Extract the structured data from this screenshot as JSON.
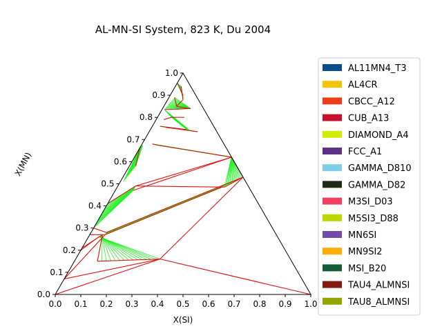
{
  "chart_data": {
    "type": "ternary",
    "title": "AL-MN-SI System, 823 K, Du 2004",
    "xlabel": "X(SI)",
    "ylabel": "X(MN)",
    "xlim": [
      0,
      1
    ],
    "ylim": [
      0,
      1
    ],
    "x_ticks": [
      "0.0",
      "0.1",
      "0.2",
      "0.3",
      "0.4",
      "0.5",
      "0.6",
      "0.7",
      "0.8",
      "0.9",
      "1.0"
    ],
    "y_ticks": [
      "0.0",
      "0.1",
      "0.2",
      "0.3",
      "0.4",
      "0.5",
      "0.6",
      "0.7",
      "0.8",
      "0.9",
      "1.0"
    ],
    "legend_position": "right",
    "legend": [
      {
        "name": "AL11MN4_T3",
        "color": "#0a4f8c"
      },
      {
        "name": "AL4CR",
        "color": "#f5c400"
      },
      {
        "name": "CBCC_A12",
        "color": "#ef3d17"
      },
      {
        "name": "CUB_A13",
        "color": "#c8102e"
      },
      {
        "name": "DIAMOND_A4",
        "color": "#d4ec00"
      },
      {
        "name": "FCC_A1",
        "color": "#5a3183"
      },
      {
        "name": "GAMMA_D810",
        "color": "#7ccfe6"
      },
      {
        "name": "GAMMA_D82",
        "color": "#1f2a14"
      },
      {
        "name": "M3SI_D03",
        "color": "#f2405e"
      },
      {
        "name": "M5SI3_D88",
        "color": "#bcd800"
      },
      {
        "name": "MN6SI",
        "color": "#7549a8"
      },
      {
        "name": "MN9SI2",
        "color": "#ffad00"
      },
      {
        "name": "MSI_B20",
        "color": "#145c38"
      },
      {
        "name": "TAU4_ALMNSI",
        "color": "#821a10"
      },
      {
        "name": "TAU8_ALMNSI",
        "color": "#93a600"
      }
    ],
    "tie_line_regions": [
      {
        "a": [
          [
            0.0,
            0.955
          ],
          [
            0.023,
            0.94
          ]
        ],
        "b": [
          [
            0.05,
            0.9
          ],
          [
            0.06,
            0.88
          ]
        ]
      },
      {
        "a": [
          [
            0.022,
            0.89
          ],
          [
            0.01,
            0.84
          ]
        ],
        "b": [
          [
            0.11,
            0.84
          ],
          [
            0.105,
            0.84
          ]
        ]
      },
      {
        "a": [
          [
            0.01,
            0.835
          ],
          [
            0.055,
            0.8
          ]
        ],
        "b": [
          [
            0.15,
            0.745
          ],
          [
            0.142,
            0.745
          ]
        ]
      },
      {
        "a": [
          [
            0.03,
            0.76
          ],
          [
            0.055,
            0.755
          ]
        ],
        "b": [
          [
            0.19,
            0.735
          ],
          [
            0.14,
            0.745
          ]
        ]
      },
      {
        "a": [
          [
            0.005,
            0.675
          ],
          [
            0.0,
            0.66
          ]
        ],
        "b": [
          [
            0.025,
            0.58
          ],
          [
            0.012,
            0.51
          ]
        ]
      },
      {
        "a": [
          [
            0.04,
            0.68
          ],
          [
            0.06,
            0.675
          ]
        ],
        "b": [
          [
            0.38,
            0.62
          ],
          [
            0.38,
            0.62
          ]
        ]
      },
      {
        "a": [
          [
            0.38,
            0.62
          ],
          [
            0.38,
            0.62
          ]
        ],
        "b": [
          [
            0.47,
            0.53
          ],
          [
            0.42,
            0.485
          ]
        ]
      },
      {
        "a": [
          [
            0.0,
            0.41
          ],
          [
            0.0,
            0.3
          ]
        ],
        "b": [
          [
            0.07,
            0.49
          ],
          [
            0.07,
            0.47
          ]
        ]
      },
      {
        "a": [
          [
            0.41,
            0.485
          ],
          [
            0.47,
            0.53
          ]
        ],
        "b": [
          [
            0.06,
            0.27
          ],
          [
            0.06,
            0.28
          ]
        ]
      },
      {
        "a": [
          [
            0.05,
            0.27
          ],
          [
            0.04,
            0.26
          ]
        ],
        "b": [
          [
            0.09,
            0.15
          ],
          [
            0.33,
            0.16
          ]
        ]
      }
    ],
    "boundary_lines": [
      [
        [
          0.0,
          0.955
        ],
        [
          0.05,
          0.9
        ]
      ],
      [
        [
          0.023,
          0.94
        ],
        [
          0.06,
          0.88
        ]
      ],
      [
        [
          0.06,
          0.88
        ],
        [
          0.05,
          0.85
        ]
      ],
      [
        [
          0.05,
          0.85
        ],
        [
          0.105,
          0.84
        ]
      ],
      [
        [
          0.022,
          0.89
        ],
        [
          0.05,
          0.85
        ]
      ],
      [
        [
          0.01,
          0.835
        ],
        [
          0.11,
          0.84
        ]
      ],
      [
        [
          0.03,
          0.79
        ],
        [
          0.055,
          0.8
        ]
      ],
      [
        [
          0.055,
          0.8
        ],
        [
          0.105,
          0.8
        ]
      ],
      [
        [
          0.03,
          0.76
        ],
        [
          0.14,
          0.745
        ]
      ],
      [
        [
          0.055,
          0.755
        ],
        [
          0.19,
          0.735
        ]
      ],
      [
        [
          0.0,
          0.66
        ],
        [
          0.025,
          0.58
        ]
      ],
      [
        [
          0.06,
          0.675
        ],
        [
          0.38,
          0.62
        ]
      ],
      [
        [
          0.04,
          0.68
        ],
        [
          0.06,
          0.675
        ]
      ],
      [
        [
          0.07,
          0.47
        ],
        [
          0.38,
          0.62
        ]
      ],
      [
        [
          0.07,
          0.49
        ],
        [
          0.38,
          0.62
        ]
      ],
      [
        [
          0.07,
          0.49
        ],
        [
          0.42,
          0.485
        ]
      ],
      [
        [
          0.38,
          0.62
        ],
        [
          0.47,
          0.53
        ]
      ],
      [
        [
          0.42,
          0.485
        ],
        [
          0.47,
          0.53
        ]
      ],
      [
        [
          0.0,
          0.41
        ],
        [
          0.07,
          0.49
        ]
      ],
      [
        [
          0.0,
          0.3
        ],
        [
          0.06,
          0.28
        ]
      ],
      [
        [
          0.0,
          0.27
        ],
        [
          0.06,
          0.27
        ]
      ],
      [
        [
          0.06,
          0.27
        ],
        [
          0.41,
          0.485
        ]
      ],
      [
        [
          0.06,
          0.28
        ],
        [
          0.47,
          0.53
        ]
      ],
      [
        [
          0.0,
          0.2
        ],
        [
          0.04,
          0.26
        ]
      ],
      [
        [
          0.0,
          0.21
        ],
        [
          0.05,
          0.27
        ]
      ],
      [
        [
          0.0,
          0.07
        ],
        [
          0.06,
          0.27
        ]
      ],
      [
        [
          0.0,
          0.07
        ],
        [
          0.33,
          0.16
        ]
      ],
      [
        [
          0.0,
          0.0
        ],
        [
          0.33,
          0.16
        ]
      ],
      [
        [
          0.09,
          0.15
        ],
        [
          0.05,
          0.27
        ]
      ],
      [
        [
          0.33,
          0.16
        ],
        [
          0.47,
          0.53
        ]
      ],
      [
        [
          0.33,
          0.16
        ],
        [
          1.0,
          0.0
        ]
      ],
      [
        [
          0.09,
          0.15
        ],
        [
          0.33,
          0.16
        ]
      ]
    ]
  }
}
